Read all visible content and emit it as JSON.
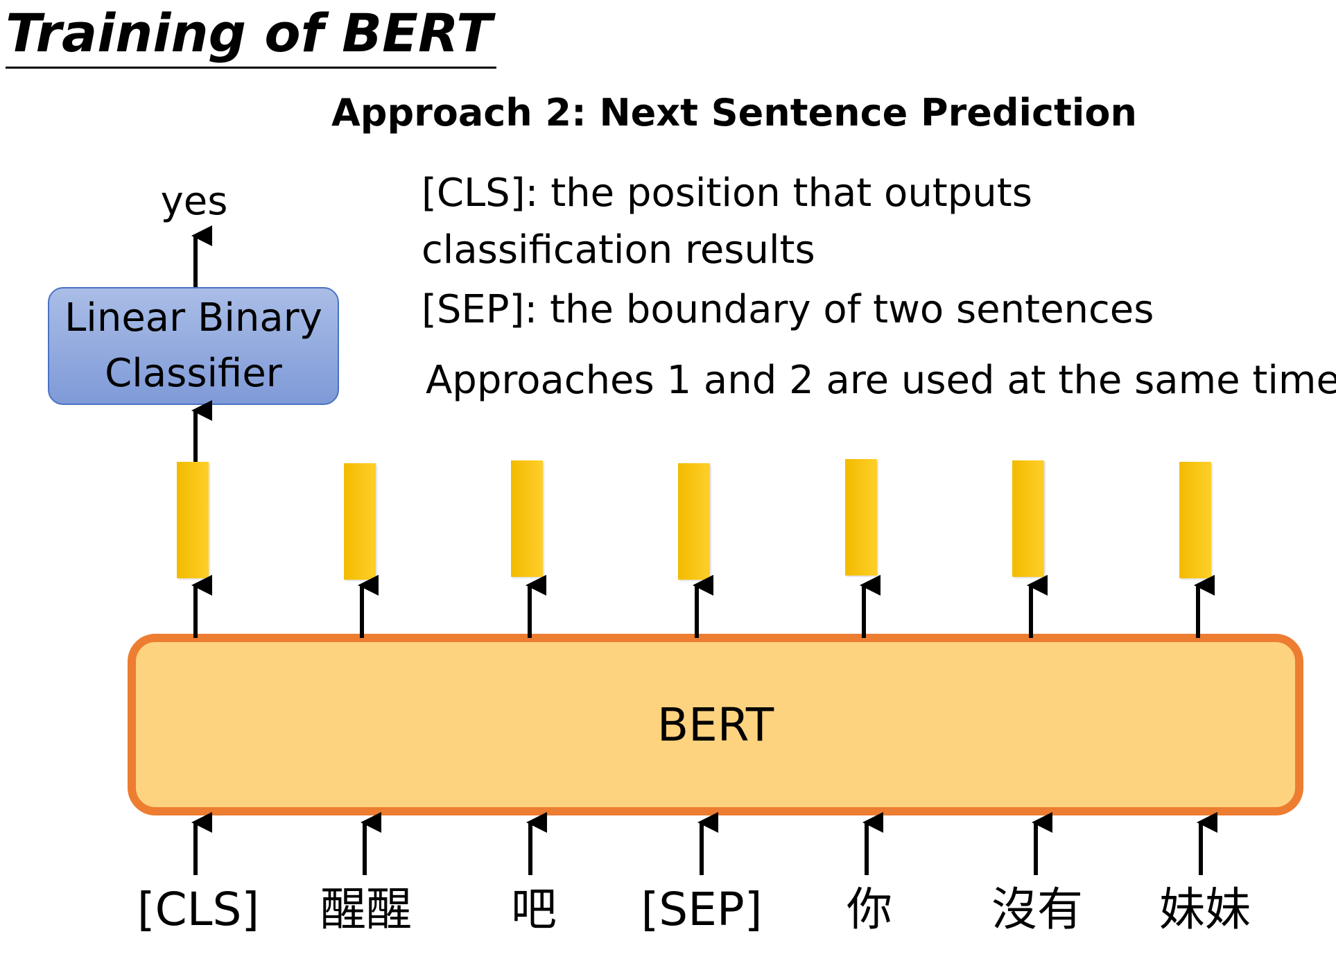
{
  "title": "Training of BERT",
  "subtitle": "Approach 2: Next Sentence Prediction",
  "notes": {
    "cls_line1": "[CLS]: the position that outputs",
    "cls_line2": "classification results",
    "sep": "[SEP]: the boundary of two sentences",
    "approaches": "Approaches 1 and 2 are used at the same time."
  },
  "output_label": "yes",
  "classifier": {
    "line1": "Linear Binary",
    "line2": "Classifier"
  },
  "model_label": "BERT",
  "tokens": [
    "[CLS]",
    "醒醒",
    "吧",
    "[SEP]",
    "你",
    "沒有",
    "妹妹"
  ],
  "colors": {
    "bert_fill": "#fed37f",
    "bert_border": "#ed7d31",
    "classifier_fill": "#8fa8de",
    "embedding": "#f7c400"
  }
}
